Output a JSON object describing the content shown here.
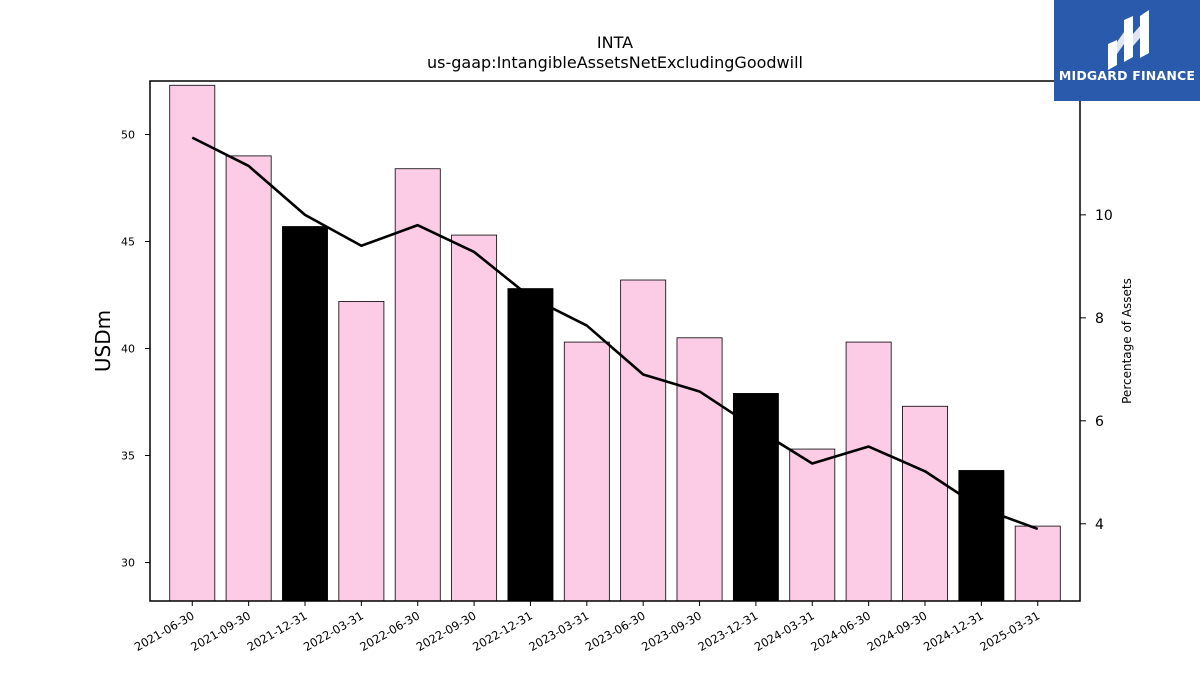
{
  "brand": {
    "name": "MIDGARD FINANCE",
    "color": "#2a5aab"
  },
  "chart_data": {
    "type": "bar",
    "title": "INTA",
    "subtitle": "us-gaap:IntangibleAssetsNetExcludingGoodwill",
    "ylabel": "USDm",
    "y2label": "Percentage of Assets",
    "ylim": [
      28.2,
      52.5
    ],
    "y2lim": [
      2.5,
      12.6
    ],
    "yticks": [
      30,
      35,
      40,
      45,
      50
    ],
    "y2ticks": [
      4,
      6,
      8,
      10
    ],
    "categories": [
      "2021-06-30",
      "2021-09-30",
      "2021-12-31",
      "2022-03-31",
      "2022-06-30",
      "2022-09-30",
      "2022-12-31",
      "2023-03-31",
      "2023-06-30",
      "2023-09-30",
      "2023-12-31",
      "2024-03-31",
      "2024-06-30",
      "2024-09-30",
      "2024-12-31",
      "2025-03-31"
    ],
    "series": [
      {
        "type": "bar",
        "axis": "left",
        "values": [
          52.3,
          49.0,
          45.7,
          42.2,
          48.4,
          45.3,
          42.8,
          40.3,
          43.2,
          40.5,
          37.9,
          35.3,
          40.3,
          37.3,
          34.3,
          31.7
        ],
        "colors": [
          "#fccce6",
          "#fccce6",
          "#000000",
          "#fccce6",
          "#fccce6",
          "#fccce6",
          "#000000",
          "#fccce6",
          "#fccce6",
          "#fccce6",
          "#000000",
          "#fccce6",
          "#fccce6",
          "#fccce6",
          "#000000",
          "#fccce6"
        ]
      },
      {
        "type": "line",
        "axis": "right",
        "color": "#000000",
        "values": [
          11.5,
          10.95,
          10.0,
          9.4,
          9.8,
          9.28,
          8.4,
          7.85,
          6.9,
          6.57,
          5.85,
          5.17,
          5.5,
          5.02,
          4.3,
          3.9
        ]
      }
    ],
    "grid": false,
    "legend": "none"
  }
}
